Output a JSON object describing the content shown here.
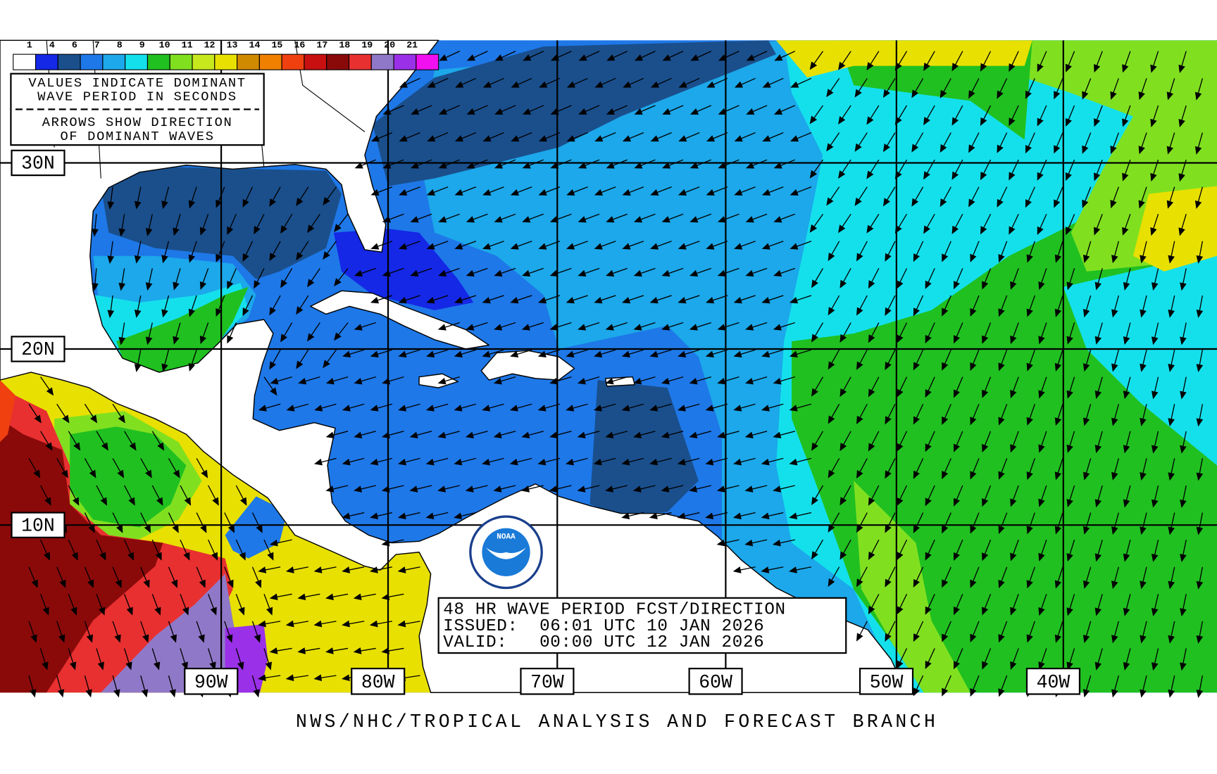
{
  "legend": {
    "labels": [
      "1",
      "4",
      "6",
      "7",
      "8",
      "9",
      "10",
      "11",
      "12",
      "13",
      "14",
      "15",
      "16",
      "17",
      "18",
      "19",
      "20",
      "21"
    ],
    "colors": [
      "#ffffff",
      "#1428e6",
      "#1a4f8c",
      "#1e78e8",
      "#1ca8ea",
      "#14e0ec",
      "#20c020",
      "#80e020",
      "#c8e81e",
      "#e8e000",
      "#d08a00",
      "#f08000",
      "#f04010",
      "#c81010",
      "#8a0a0a",
      "#e83030",
      "#9078c8",
      "#9a30e8",
      "#f010f0"
    ]
  },
  "notes": {
    "line1": "VALUES INDICATE DOMINANT",
    "line2": "WAVE PERIOD IN SECONDS",
    "line3": "ARROWS SHOW DIRECTION",
    "line4": "OF DOMINANT WAVES"
  },
  "latitude_labels": [
    "30N",
    "20N",
    "10N"
  ],
  "longitude_labels": [
    "90W",
    "80W",
    "70W",
    "60W",
    "50W",
    "40W"
  ],
  "forecast": {
    "line1": "48 HR WAVE PERIOD FCST/DIRECTION",
    "line2": "ISSUED:  06:01 UTC 10 JAN 2026",
    "line3": "VALID:   00:00 UTC 12 JAN 2026"
  },
  "logo": "NOAA",
  "footer": "NWS/NHC/TROPICAL ANALYSIS AND FORECAST BRANCH"
}
